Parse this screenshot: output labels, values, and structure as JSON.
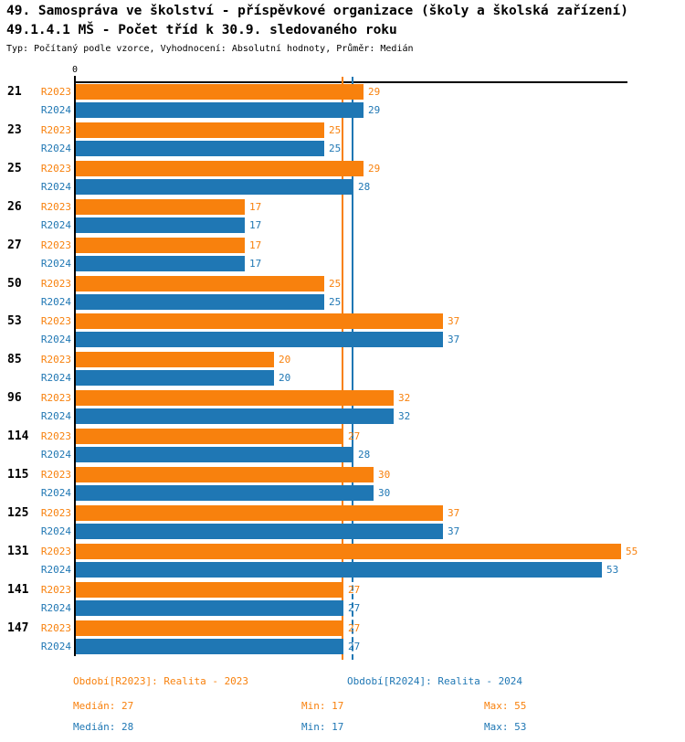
{
  "header": {
    "title_line1": "49. Samospráva ve školství - příspěvkové organizace (školy a školská zařízení)",
    "title_line2": "49.1.4.1 MŠ - Počet tříd k 30.9. sledovaného roku",
    "meta": "Typ: Počítaný podle vzorce, Vyhodnocení: Absolutní hodnoty, Průměr: Medián"
  },
  "colors": {
    "orange": "#F8810D",
    "blue": "#1F77B4",
    "axis": "#000000",
    "background": "#FFFFFF"
  },
  "chart_data": {
    "type": "bar",
    "orientation": "horizontal",
    "title": "49.1.4.1 MŠ - Počet tříd k 30.9. sledovaného roku",
    "categories": [
      "21",
      "23",
      "25",
      "26",
      "27",
      "50",
      "53",
      "85",
      "96",
      "114",
      "115",
      "125",
      "131",
      "141",
      "147"
    ],
    "series": [
      {
        "name": "R2023",
        "color": "#F8810D",
        "values": [
          29,
          25,
          29,
          17,
          17,
          25,
          37,
          20,
          32,
          27,
          30,
          37,
          55,
          27,
          27
        ]
      },
      {
        "name": "R2024",
        "color": "#1F77B4",
        "values": [
          29,
          25,
          28,
          17,
          17,
          25,
          37,
          20,
          32,
          28,
          30,
          37,
          53,
          27,
          27
        ]
      }
    ],
    "x_axis": {
      "origin_label": "0",
      "min": 0,
      "max": 55.7
    },
    "median_lines": [
      {
        "series": "R2023",
        "value": 27,
        "color": "#F8810D"
      },
      {
        "series": "R2024",
        "value": 28,
        "color": "#1F77B4"
      }
    ],
    "grid": false,
    "value_labels": true,
    "legend_position": "bottom"
  },
  "legend": {
    "items": [
      {
        "label": "Období[R2023]: Realita - 2023",
        "color": "#F8810D"
      },
      {
        "label": "Období[R2024]: Realita - 2024",
        "color": "#1F77B4"
      }
    ]
  },
  "stats": {
    "rows": [
      {
        "series": "R2023",
        "color": "#F8810D",
        "median_label": "Medián: 27",
        "min_label": "Min: 17",
        "max_label": "Max: 55"
      },
      {
        "series": "R2024",
        "color": "#1F77B4",
        "median_label": "Medián: 28",
        "min_label": "Min: 17",
        "max_label": "Max: 53"
      }
    ]
  }
}
